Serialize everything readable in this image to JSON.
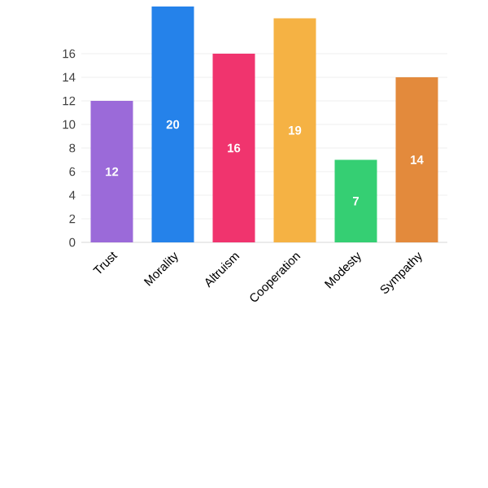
{
  "chart_data": {
    "type": "bar",
    "categories": [
      "Trust",
      "Morality",
      "Altruism",
      "Cooperation",
      "Modesty",
      "Sympathy"
    ],
    "values": [
      12,
      20,
      16,
      19,
      7,
      14
    ],
    "colors": [
      "#9b6ad9",
      "#2582ea",
      "#f0346e",
      "#f5b244",
      "#35cf73",
      "#e38a3c"
    ],
    "ylim": [
      0,
      20
    ],
    "yticks": [
      0,
      2,
      4,
      6,
      8,
      10,
      12,
      14,
      16
    ],
    "grid": "y",
    "data_labels": true
  }
}
